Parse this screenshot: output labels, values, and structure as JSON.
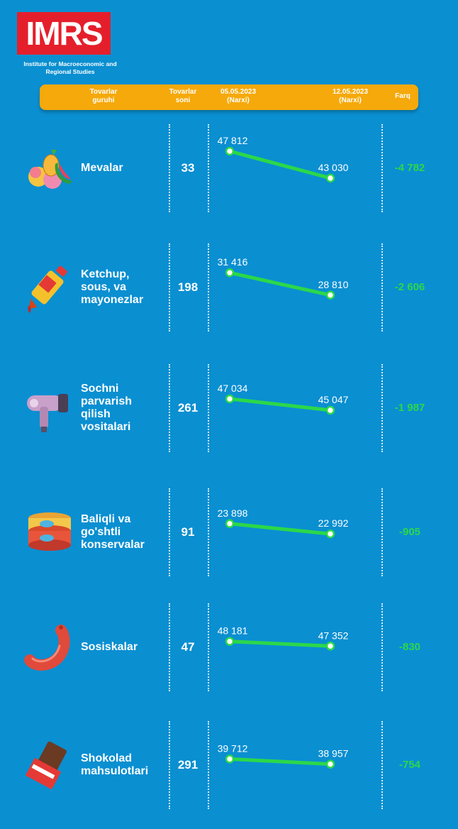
{
  "header": {
    "logo": "IMRS",
    "subtitle": "Institute for Macroeconomic\nand Regional Studies"
  },
  "table_header": {
    "group": "Tovarlar\nguruhi",
    "count": "Tovarlar\nsoni",
    "date1": "05.05.2023\n(Narxi)",
    "date2": "12.05.2023\n(Narxi)",
    "diff": "Farq"
  },
  "chart_data": {
    "type": "line",
    "x": [
      "05.05.2023",
      "12.05.2023"
    ],
    "rows": [
      {
        "name": "Mevalar",
        "icon": "fruit-icon",
        "count": "33",
        "values": [
          47812,
          43030
        ],
        "labels": [
          "47 812",
          "43 030"
        ],
        "diff": "-4 782"
      },
      {
        "name": "Ketchup,\nsous, va\nmayonezlar",
        "icon": "ketchup-icon",
        "count": "198",
        "values": [
          31416,
          28810
        ],
        "labels": [
          "31 416",
          "28 810"
        ],
        "diff": "-2 606"
      },
      {
        "name": "Sochni\nparvarish\nqilish\nvositalari",
        "icon": "hair-dryer-icon",
        "count": "261",
        "values": [
          47034,
          45047
        ],
        "labels": [
          "47 034",
          "45 047"
        ],
        "diff": "-1 987"
      },
      {
        "name": "Baliqli va\ngo'shtli\nkonservalar",
        "icon": "canned-food-icon",
        "count": "91",
        "values": [
          23898,
          22992
        ],
        "labels": [
          "23 898",
          "22 992"
        ],
        "diff": "-905"
      },
      {
        "name": "Sosiskalar",
        "icon": "sausage-icon",
        "count": "47",
        "values": [
          48181,
          47352
        ],
        "labels": [
          "48 181",
          "47 352"
        ],
        "diff": "-830"
      },
      {
        "name": "Shokolad\nmahsulotlari",
        "icon": "chocolate-icon",
        "count": "291",
        "values": [
          39712,
          38957
        ],
        "labels": [
          "39 712",
          "38 957"
        ],
        "diff": "-754"
      }
    ]
  },
  "colors": {
    "background": "#0a8fd1",
    "header_bar": "#f5a90a",
    "line": "#2bd84a",
    "logo": "#e41f2b"
  }
}
